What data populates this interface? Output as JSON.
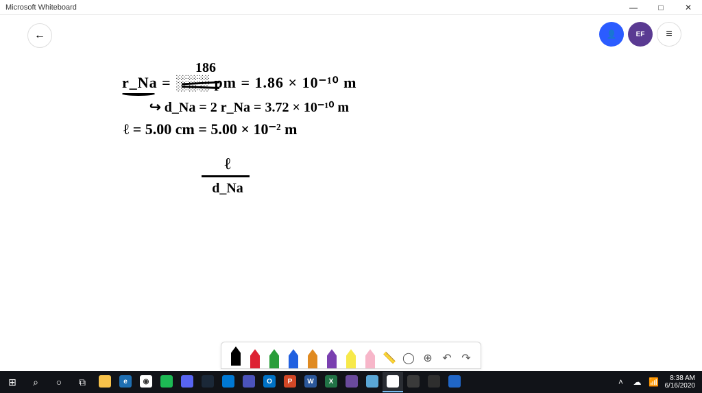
{
  "titlebar": {
    "title": "Microsoft Whiteboard",
    "minimize": "—",
    "maximize": "□",
    "close": "✕"
  },
  "toolbar": {
    "back_glyph": "←",
    "account1_glyph": "👤",
    "account2_label": "EF",
    "menu_glyph": "≡"
  },
  "handwriting": {
    "line1_correction": "186",
    "line2": "r_Na =  ░░░  pm  =  1.86 × 10⁻¹⁰ m",
    "line3": "↪  d_Na = 2 r_Na  =  3.72 × 10⁻¹⁰ m",
    "line4": "ℓ = 5.00 cm  =  5.00 × 10⁻² m",
    "line5_num": "ℓ",
    "line5_den": "d_Na"
  },
  "pentool": {
    "pens": [
      {
        "name": "black",
        "selected": true
      },
      {
        "name": "red",
        "selected": false
      },
      {
        "name": "green",
        "selected": false
      },
      {
        "name": "blue",
        "selected": false
      },
      {
        "name": "orange",
        "selected": false
      },
      {
        "name": "purple",
        "selected": false
      },
      {
        "name": "hl",
        "selected": false
      },
      {
        "name": "eraser",
        "selected": false
      }
    ],
    "ruler_glyph": "📏",
    "lasso_glyph": "◯",
    "add_glyph": "⊕",
    "undo_glyph": "↶",
    "redo_glyph": "↷"
  },
  "taskbar": {
    "start_glyph": "⊞",
    "search_glyph": "⌕",
    "cortana_glyph": "○",
    "taskview_glyph": "⧉",
    "apps": [
      {
        "name": "file-explorer",
        "color": "#f8c24a",
        "label": ""
      },
      {
        "name": "edge",
        "color": "#1f6fb2",
        "label": "e"
      },
      {
        "name": "chrome",
        "color": "#ffffff",
        "label": "◉"
      },
      {
        "name": "spotify",
        "color": "#1db954",
        "label": ""
      },
      {
        "name": "discord",
        "color": "#5865f2",
        "label": ""
      },
      {
        "name": "steam",
        "color": "#1b2838",
        "label": ""
      },
      {
        "name": "vscode",
        "color": "#0078d4",
        "label": ""
      },
      {
        "name": "teams",
        "color": "#4b53bc",
        "label": ""
      },
      {
        "name": "outlook",
        "color": "#0072c6",
        "label": "O"
      },
      {
        "name": "powerpoint",
        "color": "#d24726",
        "label": "P"
      },
      {
        "name": "word",
        "color": "#2b579a",
        "label": "W"
      },
      {
        "name": "excel",
        "color": "#217346",
        "label": "X"
      },
      {
        "name": "snip",
        "color": "#6a4a9c",
        "label": ""
      },
      {
        "name": "mail",
        "color": "#5aa7d6",
        "label": ""
      },
      {
        "name": "whiteboard",
        "color": "#ffffff",
        "label": "",
        "active": true
      },
      {
        "name": "task-manager",
        "color": "#3a3a3a",
        "label": ""
      },
      {
        "name": "obs",
        "color": "#2e2e2e",
        "label": ""
      },
      {
        "name": "paint",
        "color": "#2066c7",
        "label": ""
      }
    ],
    "tray": {
      "chevron": "˄",
      "onedrive": "☁",
      "wifi": "📶",
      "time": "8:38 AM",
      "date": "6/16/2020"
    }
  },
  "colors": {
    "accent_blue": "#2b5cff",
    "accent_purple": "#5a3a92",
    "canvas_bg": "#ffffff",
    "taskbar_bg": "#111318"
  }
}
